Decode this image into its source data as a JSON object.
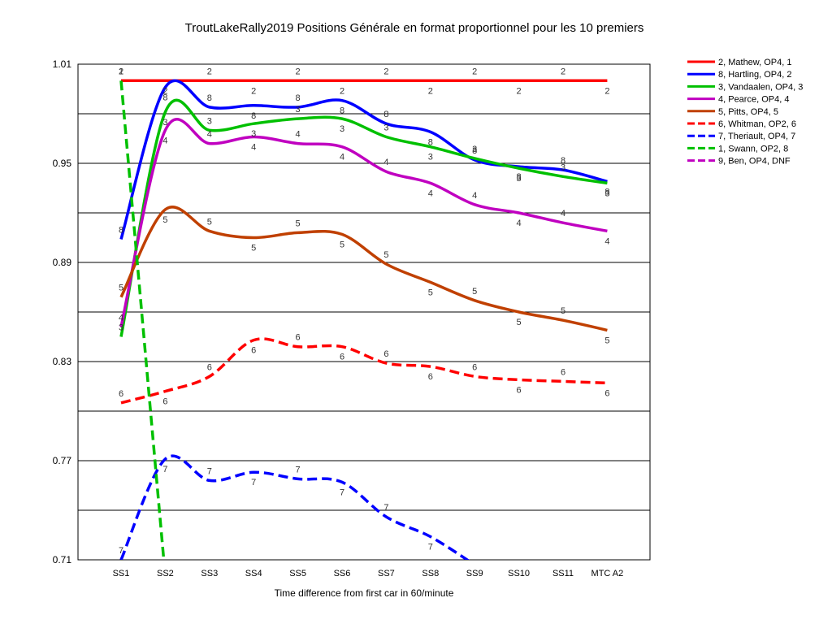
{
  "chart_data": {
    "type": "line",
    "title": "TroutLakeRally2019  Positions Générale en format proportionnel pour les 10 premiers",
    "xlabel": "Time difference from first car in 60/minute",
    "ylabel": "",
    "categories": [
      "SS1",
      "SS2",
      "SS3",
      "SS4",
      "SS5",
      "SS6",
      "SS7",
      "SS8",
      "SS9",
      "SS10",
      "SS11",
      "MTC A2"
    ],
    "ylim": [
      0.71,
      1.01
    ],
    "yticks": [
      "1.01",
      "0.95",
      "0.89",
      "0.83",
      "0.77",
      "0.71"
    ],
    "grid": "horizontal",
    "legend_position": "right",
    "series": [
      {
        "name": "2, Mathew, OP4, 1",
        "color": "#ff0000",
        "dash": false,
        "label": "2",
        "values": [
          1.0,
          1.0,
          1.0,
          1.0,
          1.0,
          1.0,
          1.0,
          1.0,
          1.0,
          1.0,
          1.0,
          1.0
        ]
      },
      {
        "name": "8, Hartling, OP4, 2",
        "color": "#0000ff",
        "dash": false,
        "label": "8",
        "values": [
          0.904,
          0.996,
          0.984,
          0.985,
          0.984,
          0.988,
          0.974,
          0.969,
          0.952,
          0.948,
          0.946,
          0.939
        ]
      },
      {
        "name": "3, Vandaalen, OP4, 3",
        "color": "#00c000",
        "dash": false,
        "label": "3",
        "values": [
          0.845,
          0.981,
          0.97,
          0.974,
          0.977,
          0.977,
          0.966,
          0.96,
          0.953,
          0.947,
          0.942,
          0.938
        ]
      },
      {
        "name": "4, Pearce, OP4, 4",
        "color": "#c000c0",
        "dash": false,
        "label": "4",
        "values": [
          0.851,
          0.97,
          0.962,
          0.966,
          0.962,
          0.96,
          0.945,
          0.938,
          0.925,
          0.92,
          0.914,
          0.909
        ]
      },
      {
        "name": "5, Pitts, OP4, 5",
        "color": "#c04000",
        "dash": false,
        "label": "5",
        "values": [
          0.869,
          0.922,
          0.909,
          0.905,
          0.908,
          0.907,
          0.889,
          0.878,
          0.867,
          0.86,
          0.855,
          0.849
        ]
      },
      {
        "name": "6, Whitman, OP2, 6",
        "color": "#ff0000",
        "dash": true,
        "label": "6",
        "values": [
          0.805,
          0.812,
          0.821,
          0.843,
          0.839,
          0.839,
          0.829,
          0.827,
          0.821,
          0.819,
          0.818,
          0.817
        ]
      },
      {
        "name": "7, Theriault, OP4, 7",
        "color": "#0000ff",
        "dash": true,
        "label": "7",
        "values": [
          0.71,
          0.771,
          0.758,
          0.763,
          0.759,
          0.757,
          0.736,
          0.724,
          0.707,
          null,
          null,
          null
        ]
      },
      {
        "name": "1, Swann, OP2, 8",
        "color": "#00c000",
        "dash": true,
        "label": "1",
        "values": [
          1.0,
          0.7,
          null,
          null,
          null,
          null,
          null,
          null,
          null,
          null,
          null,
          null
        ]
      },
      {
        "name": "9, Ben, OP4, DNF",
        "color": "#c000c0",
        "dash": true,
        "label": "9",
        "values": [
          null,
          null,
          null,
          null,
          null,
          null,
          null,
          null,
          null,
          null,
          null,
          null
        ]
      }
    ]
  }
}
